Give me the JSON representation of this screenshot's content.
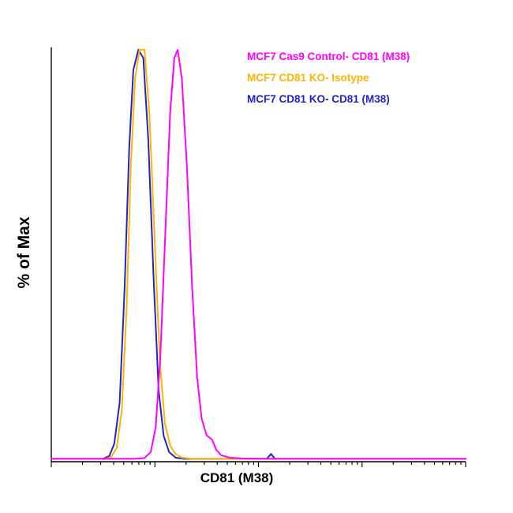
{
  "legend": {
    "items": [
      {
        "label": "MCF7 Cas9 Control- CD81 (M38)",
        "color": "#FF00FF"
      },
      {
        "label": "MCF7 CD81 KO- Isotype",
        "color": "#FFB300"
      },
      {
        "label": "MCF7 CD81 KO- CD81 (M38)",
        "color": "#2222CC"
      }
    ]
  },
  "chart_data": {
    "type": "line",
    "subtype": "flow-cytometry-histogram",
    "title": "",
    "xlabel": "CD81 (M38)",
    "ylabel": "% of Max",
    "x_axis": {
      "scale": "log",
      "decades": 4,
      "tick_labels_visible": false,
      "units": "fluorescence intensity (fraction of axis 0-1)"
    },
    "y_axis": {
      "range": [
        0,
        100
      ],
      "tick_labels_visible": false,
      "units": "% of Max"
    },
    "legend_position": "top-right",
    "grid": false,
    "series": [
      {
        "name": "MCF7 Cas9 Control- CD81 (M38)",
        "color": "#FF00FF",
        "points": [
          [
            0,
            0.3
          ],
          [
            0.2,
            0.3
          ],
          [
            0.225,
            0.5
          ],
          [
            0.24,
            2
          ],
          [
            0.252,
            8
          ],
          [
            0.263,
            25
          ],
          [
            0.275,
            55
          ],
          [
            0.287,
            85
          ],
          [
            0.297,
            98
          ],
          [
            0.305,
            100
          ],
          [
            0.315,
            93
          ],
          [
            0.327,
            72
          ],
          [
            0.34,
            42
          ],
          [
            0.352,
            20
          ],
          [
            0.363,
            10
          ],
          [
            0.375,
            6
          ],
          [
            0.388,
            5
          ],
          [
            0.398,
            2.5
          ],
          [
            0.41,
            1.2
          ],
          [
            0.43,
            0.6
          ],
          [
            0.46,
            0.4
          ],
          [
            0.52,
            0.3
          ],
          [
            0.7,
            0.3
          ],
          [
            1,
            0.3
          ]
        ]
      },
      {
        "name": "MCF7 CD81 KO- Isotype",
        "color": "#FFB300",
        "points": [
          [
            0,
            0.3
          ],
          [
            0.13,
            0.3
          ],
          [
            0.145,
            0.8
          ],
          [
            0.158,
            3
          ],
          [
            0.17,
            12
          ],
          [
            0.182,
            38
          ],
          [
            0.192,
            72
          ],
          [
            0.202,
            93
          ],
          [
            0.213,
            100
          ],
          [
            0.225,
            100
          ],
          [
            0.237,
            84
          ],
          [
            0.25,
            52
          ],
          [
            0.262,
            24
          ],
          [
            0.274,
            9
          ],
          [
            0.287,
            3.5
          ],
          [
            0.3,
            1.5
          ],
          [
            0.315,
            0.6
          ],
          [
            0.34,
            0.3
          ],
          [
            1,
            0.3
          ]
        ]
      },
      {
        "name": "MCF7 CD81 KO- CD81 (M38)",
        "color": "#2222CC",
        "points": [
          [
            0,
            0.3
          ],
          [
            0.125,
            0.3
          ],
          [
            0.14,
            1
          ],
          [
            0.152,
            4
          ],
          [
            0.165,
            14
          ],
          [
            0.177,
            42
          ],
          [
            0.188,
            76
          ],
          [
            0.198,
            95
          ],
          [
            0.21,
            100
          ],
          [
            0.222,
            98
          ],
          [
            0.234,
            78
          ],
          [
            0.247,
            44
          ],
          [
            0.259,
            17
          ],
          [
            0.271,
            6
          ],
          [
            0.284,
            2
          ],
          [
            0.3,
            0.6
          ],
          [
            0.32,
            0.3
          ],
          [
            0.52,
            0.3
          ],
          [
            0.53,
            1.5
          ],
          [
            0.54,
            0.3
          ],
          [
            1,
            0.3
          ]
        ]
      }
    ]
  }
}
